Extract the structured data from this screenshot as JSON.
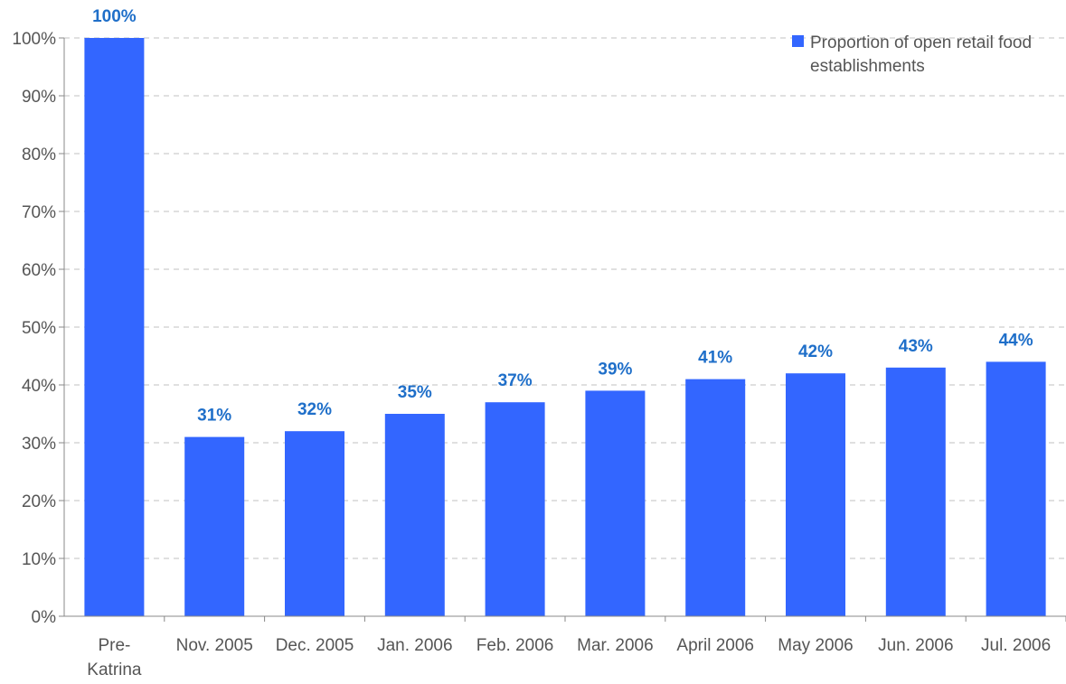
{
  "chart_data": {
    "type": "bar",
    "categories": [
      [
        "Pre-",
        "Katrina"
      ],
      [
        "Nov. 2005"
      ],
      [
        "Dec. 2005"
      ],
      [
        "Jan. 2006"
      ],
      [
        "Feb. 2006"
      ],
      [
        "Mar. 2006"
      ],
      [
        "April 2006"
      ],
      [
        "May 2006"
      ],
      [
        "Jun. 2006"
      ],
      [
        "Jul. 2006"
      ]
    ],
    "series": [
      {
        "name": "Proportion of open retail food establishments",
        "values": [
          100,
          31,
          32,
          35,
          37,
          39,
          41,
          42,
          43,
          44
        ],
        "data_labels": [
          "100%",
          "31%",
          "32%",
          "35%",
          "37%",
          "39%",
          "41%",
          "42%",
          "43%",
          "44%"
        ]
      }
    ],
    "y_ticks": [
      0,
      10,
      20,
      30,
      40,
      50,
      60,
      70,
      80,
      90,
      100
    ],
    "y_tick_labels": [
      "0%",
      "10%",
      "20%",
      "30%",
      "40%",
      "50%",
      "60%",
      "70%",
      "80%",
      "90%",
      "100%"
    ],
    "ylim": [
      0,
      100
    ],
    "title": "",
    "xlabel": "",
    "ylabel": "",
    "grid": true,
    "legend_position": "top-right",
    "legend_lines": [
      "Proportion of open retail food",
      "establishments"
    ],
    "colors": {
      "bar": "#3366ff",
      "data_label": "#1f6fc9",
      "grid": "#c0c0c0",
      "axis": "#888888",
      "tick_text": "#555555"
    }
  }
}
